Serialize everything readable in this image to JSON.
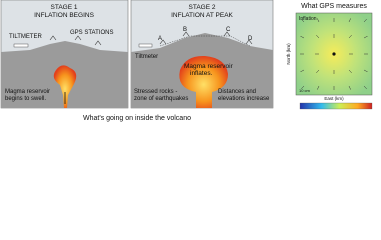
{
  "stage1": {
    "title": "STAGE 1",
    "subtitle": "INFLATION BEGINS",
    "tiltmeter": "TILTMETER",
    "gps": "GPS STATIONS",
    "magma": [
      "Magma reservoir",
      "begins to swell."
    ]
  },
  "stage2": {
    "title": "STAGE 2",
    "subtitle": "INFLATION AT PEAK",
    "tiltmeter": "Tiltmeter",
    "stations": [
      "A",
      "B",
      "C",
      "D"
    ],
    "magma": [
      "Magma reservoir",
      "inflates."
    ],
    "stress": [
      "Stressed rocks -",
      "zone of earthquakes"
    ],
    "distance": [
      "Distances and",
      "elevations increase"
    ]
  },
  "caption": "What's going on inside the volcano",
  "gps_panel": {
    "title": "What GPS measures",
    "label": "Inflation",
    "y_axis": "North (km)",
    "x_axis": "East (km)",
    "scale": "10 cm"
  }
}
